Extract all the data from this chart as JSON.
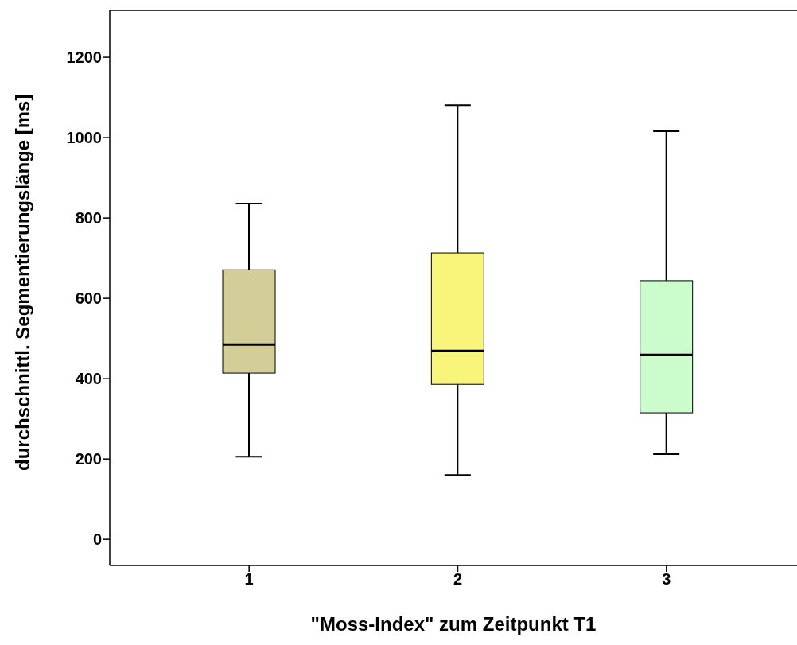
{
  "chart_data": {
    "type": "box",
    "xlabel": "\"Moss-Index\" zum Zeitpunkt T1",
    "ylabel": "durchschnittl. Segmentierungslänge [ms]",
    "categories": [
      "1",
      "2",
      "3"
    ],
    "boxes": [
      {
        "low": 206,
        "q1": 414,
        "median": 485,
        "q3": 671,
        "high": 836
      },
      {
        "low": 160,
        "q1": 386,
        "median": 469,
        "q3": 713,
        "high": 1081
      },
      {
        "low": 212,
        "q1": 315,
        "median": 459,
        "q3": 644,
        "high": 1016
      }
    ],
    "colors": [
      "#d3ce97",
      "#f8f57a",
      "#ccfccc"
    ],
    "ylim": [
      -65,
      1317
    ],
    "yticks": [
      0,
      200,
      400,
      600,
      800,
      1000,
      1200
    ],
    "grid": false
  }
}
